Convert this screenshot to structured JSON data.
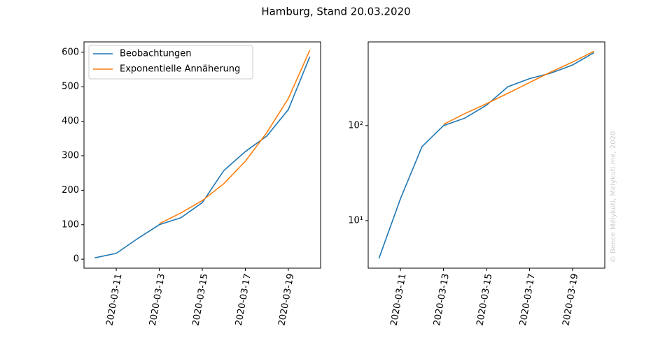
{
  "title": "Hamburg, Stand 20.03.2020",
  "watermark": "© Bence Mélykúti, Melykuti.me, 2020",
  "chart_data": [
    {
      "type": "line",
      "log_y": false,
      "legend": "upper left",
      "x": [
        "2020-03-10",
        "2020-03-11",
        "2020-03-12",
        "2020-03-13",
        "2020-03-14",
        "2020-03-15",
        "2020-03-16",
        "2020-03-17",
        "2020-03-18",
        "2020-03-19",
        "2020-03-20"
      ],
      "xlim": [
        "2020-03-09T12:00",
        "2020-03-20T12:00"
      ],
      "xticks": [
        "2020-03-11",
        "2020-03-13",
        "2020-03-15",
        "2020-03-17",
        "2020-03-19"
      ],
      "ylim": [
        -26,
        630
      ],
      "yticks": [
        0,
        100,
        200,
        300,
        400,
        500,
        600
      ],
      "series": [
        {
          "name": "Beobachtungen",
          "color": "#1f77b4",
          "values": [
            4,
            17,
            60,
            100,
            120,
            164,
            257,
            312,
            357,
            434,
            587
          ]
        },
        {
          "name": "Exponentielle Annäherung",
          "color": "#ff7f0e",
          "values": [
            null,
            null,
            null,
            103,
            134,
            170,
            219,
            284,
            367,
            466,
            606
          ]
        }
      ]
    },
    {
      "type": "line",
      "log_y": true,
      "x": [
        "2020-03-10",
        "2020-03-11",
        "2020-03-12",
        "2020-03-13",
        "2020-03-14",
        "2020-03-15",
        "2020-03-16",
        "2020-03-17",
        "2020-03-18",
        "2020-03-19",
        "2020-03-20"
      ],
      "xlim": [
        "2020-03-09T12:00",
        "2020-03-20T12:00"
      ],
      "xticks": [
        "2020-03-11",
        "2020-03-13",
        "2020-03-15",
        "2020-03-17",
        "2020-03-19"
      ],
      "ylim": [
        3.16,
        760
      ],
      "yticks": [
        {
          "value": 10,
          "label": "10¹"
        },
        {
          "value": 100,
          "label": "10²"
        }
      ],
      "series": [
        {
          "name": "Beobachtungen",
          "color": "#1f77b4",
          "values": [
            4,
            17,
            60,
            100,
            120,
            164,
            257,
            312,
            357,
            434,
            587
          ]
        },
        {
          "name": "Exponentielle Annäherung",
          "color": "#ff7f0e",
          "values": [
            null,
            null,
            null,
            103,
            134,
            170,
            219,
            284,
            367,
            466,
            606
          ]
        }
      ]
    }
  ]
}
